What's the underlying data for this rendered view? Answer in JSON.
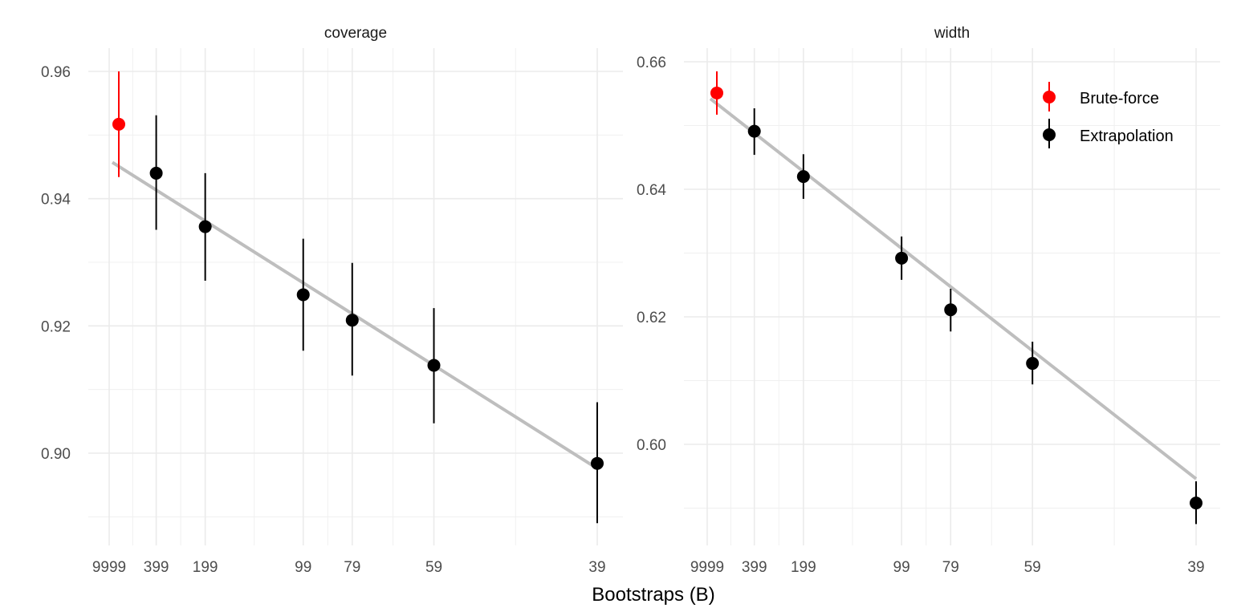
{
  "chart_data": {
    "type": "scatter",
    "xlabel": "Bootstraps (B)",
    "x_transform": "1/(B+1)",
    "x_tick_labels": [
      "9999",
      "399",
      "199",
      "99",
      "79",
      "59",
      "39"
    ],
    "B": [
      9999,
      399,
      199,
      99,
      79,
      59,
      39
    ],
    "legend": {
      "placement": "top-right",
      "entries": [
        {
          "name": "Brute-force",
          "color": "#ff0000"
        },
        {
          "name": "Extrapolation",
          "color": "#000000"
        }
      ]
    },
    "fit_line_color": "#bebebe",
    "panels": [
      {
        "title": "coverage",
        "ylim": [
          0.8857,
          0.9636
        ],
        "y_ticks": [
          0.9,
          0.92,
          0.94,
          0.96
        ],
        "y_tick_labels": [
          "0.90",
          "0.92",
          "0.94",
          "0.96"
        ],
        "points": [
          {
            "B": 9999,
            "series": "Brute-force",
            "y": 0.9517,
            "lo": 0.9434,
            "hi": 0.96
          },
          {
            "B": 399,
            "series": "Extrapolation",
            "y": 0.944,
            "lo": 0.9351,
            "hi": 0.9531
          },
          {
            "B": 199,
            "series": "Extrapolation",
            "y": 0.9356,
            "lo": 0.9271,
            "hi": 0.944
          },
          {
            "B": 99,
            "series": "Extrapolation",
            "y": 0.9249,
            "lo": 0.9161,
            "hi": 0.9337
          },
          {
            "B": 79,
            "series": "Extrapolation",
            "y": 0.9209,
            "lo": 0.9122,
            "hi": 0.9299
          },
          {
            "B": 59,
            "series": "Extrapolation",
            "y": 0.9138,
            "lo": 0.9047,
            "hi": 0.9228
          },
          {
            "B": 39,
            "series": "Extrapolation",
            "y": 0.8984,
            "lo": 0.889,
            "hi": 0.908
          }
        ],
        "fit_line": [
          {
            "B": 9999,
            "y": 0.9457
          },
          {
            "B": 39,
            "y": 0.8976
          }
        ]
      },
      {
        "title": "width",
        "ylim": [
          0.5842,
          0.6621
        ],
        "y_ticks": [
          0.6,
          0.62,
          0.64,
          0.66
        ],
        "y_tick_labels": [
          "0.60",
          "0.62",
          "0.64",
          "0.66"
        ],
        "points": [
          {
            "B": 9999,
            "series": "Brute-force",
            "y": 0.6551,
            "lo": 0.6517,
            "hi": 0.6585
          },
          {
            "B": 399,
            "series": "Extrapolation",
            "y": 0.6491,
            "lo": 0.6454,
            "hi": 0.6527
          },
          {
            "B": 199,
            "series": "Extrapolation",
            "y": 0.642,
            "lo": 0.6385,
            "hi": 0.6455
          },
          {
            "B": 99,
            "series": "Extrapolation",
            "y": 0.6292,
            "lo": 0.6258,
            "hi": 0.6326
          },
          {
            "B": 79,
            "series": "Extrapolation",
            "y": 0.6211,
            "lo": 0.6177,
            "hi": 0.6244
          },
          {
            "B": 59,
            "series": "Extrapolation",
            "y": 0.6127,
            "lo": 0.6094,
            "hi": 0.6161
          },
          {
            "B": 39,
            "series": "Extrapolation",
            "y": 0.5908,
            "lo": 0.5875,
            "hi": 0.5942
          }
        ],
        "fit_line": [
          {
            "B": 9999,
            "y": 0.6542
          },
          {
            "B": 39,
            "y": 0.5946
          }
        ]
      }
    ]
  }
}
